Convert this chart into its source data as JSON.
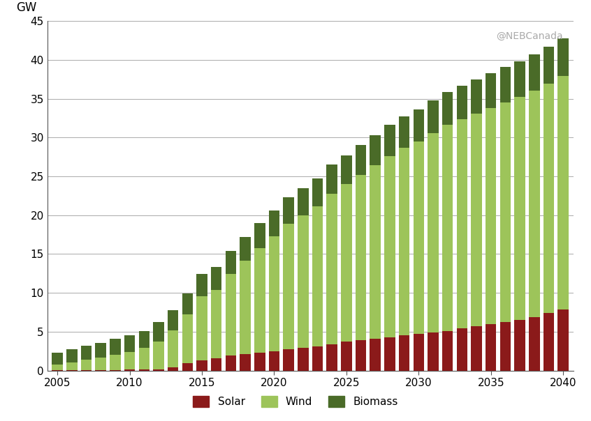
{
  "years": [
    2005,
    2006,
    2007,
    2008,
    2009,
    2010,
    2011,
    2012,
    2013,
    2014,
    2015,
    2016,
    2017,
    2018,
    2019,
    2020,
    2021,
    2022,
    2023,
    2024,
    2025,
    2026,
    2027,
    2028,
    2029,
    2030,
    2031,
    2032,
    2033,
    2034,
    2035,
    2036,
    2037,
    2038,
    2039,
    2040
  ],
  "solar": [
    0.05,
    0.05,
    0.05,
    0.05,
    0.05,
    0.1,
    0.1,
    0.15,
    0.4,
    0.9,
    1.3,
    1.6,
    1.9,
    2.1,
    2.3,
    2.5,
    2.7,
    2.9,
    3.1,
    3.4,
    3.7,
    3.9,
    4.1,
    4.3,
    4.5,
    4.7,
    4.9,
    5.1,
    5.4,
    5.7,
    6.0,
    6.2,
    6.5,
    6.9,
    7.4,
    7.9
  ],
  "wind": [
    0.7,
    1.0,
    1.3,
    1.6,
    2.0,
    2.3,
    2.8,
    3.6,
    4.8,
    6.3,
    8.3,
    8.8,
    10.5,
    12.0,
    13.5,
    14.8,
    16.2,
    17.1,
    18.0,
    19.4,
    20.3,
    21.3,
    22.3,
    23.3,
    24.2,
    24.8,
    25.7,
    26.5,
    27.0,
    27.4,
    27.8,
    28.3,
    28.7,
    29.1,
    29.5,
    30.0
  ],
  "biomass": [
    1.5,
    1.7,
    1.8,
    1.9,
    2.0,
    2.1,
    2.2,
    2.5,
    2.6,
    2.7,
    2.8,
    2.9,
    3.0,
    3.1,
    3.2,
    3.3,
    3.4,
    3.5,
    3.6,
    3.7,
    3.7,
    3.8,
    3.9,
    4.0,
    4.0,
    4.1,
    4.2,
    4.3,
    4.3,
    4.4,
    4.5,
    4.6,
    4.6,
    4.7,
    4.8,
    4.9
  ],
  "solar_color": "#8B1A1A",
  "wind_color": "#9DC45A",
  "biomass_color": "#4A6B28",
  "ylabel": "GW",
  "ylim": [
    0,
    45
  ],
  "yticks": [
    0,
    5,
    10,
    15,
    20,
    25,
    30,
    35,
    40,
    45
  ],
  "xlim": [
    2004.3,
    2040.7
  ],
  "xticks": [
    2005,
    2010,
    2015,
    2020,
    2025,
    2030,
    2035,
    2040
  ],
  "watermark": "@NEBCanada",
  "bar_width": 0.75,
  "background_color": "#ffffff",
  "grid_color": "#aaaaaa"
}
